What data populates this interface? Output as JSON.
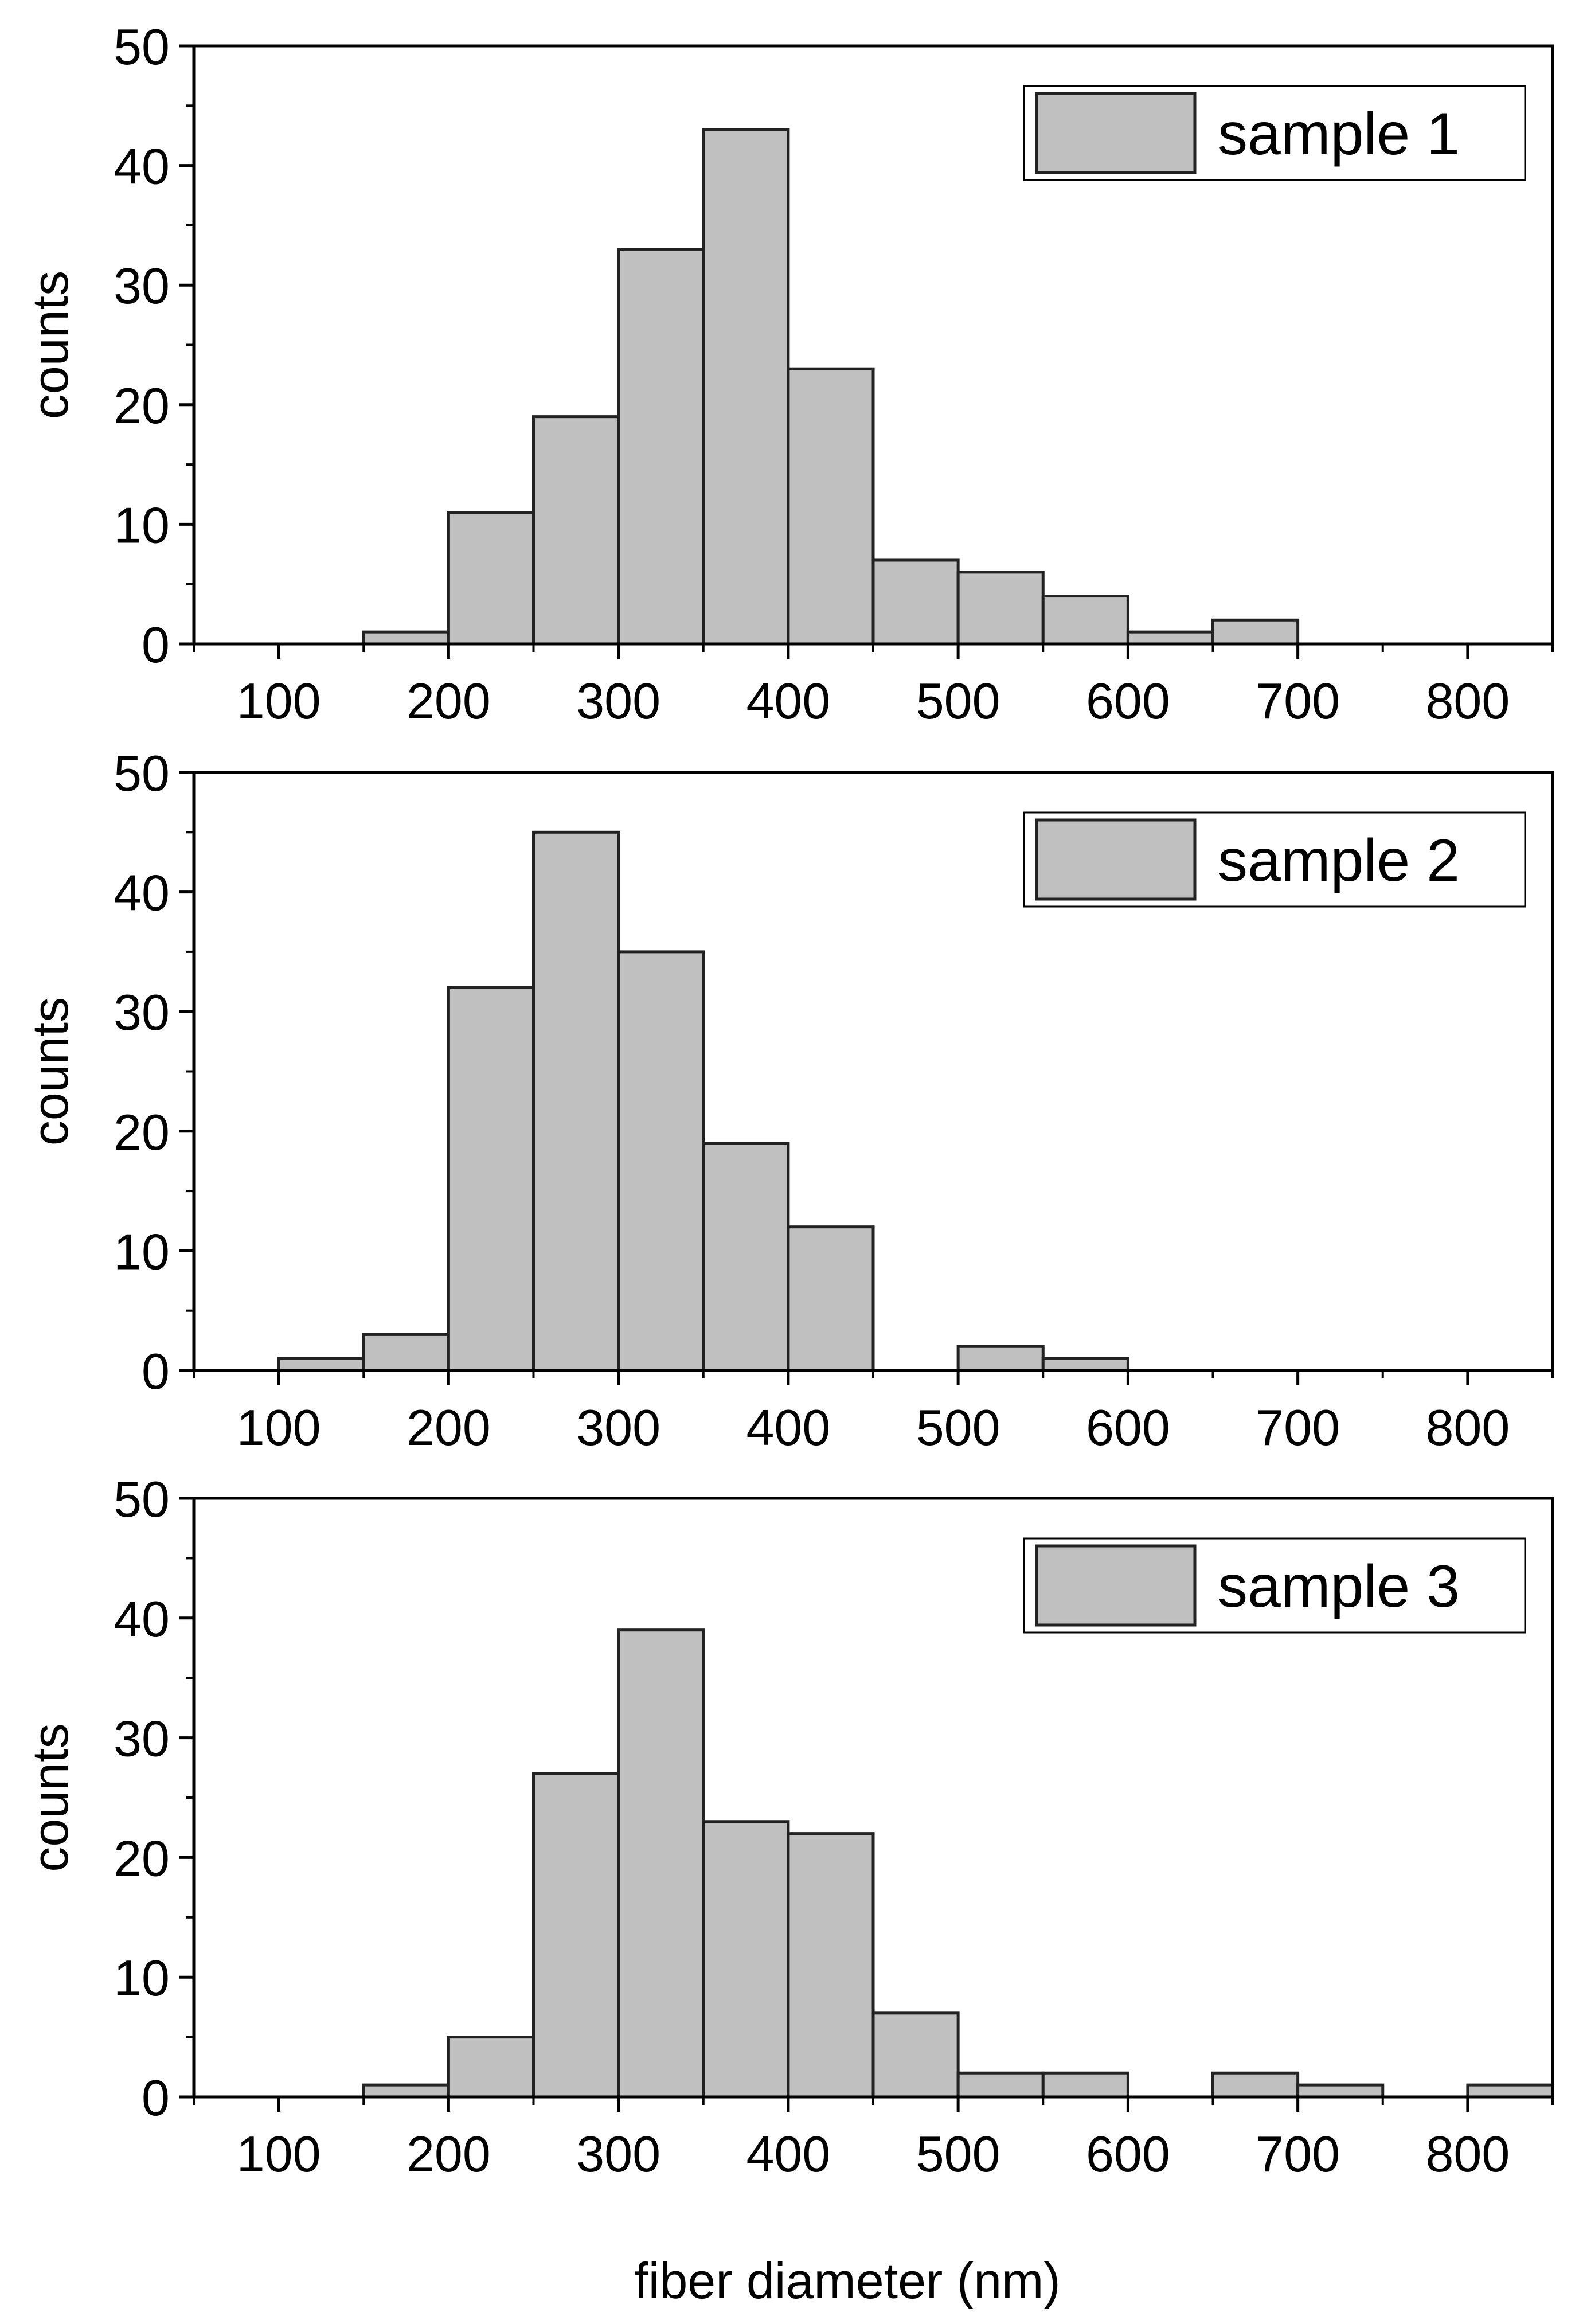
{
  "figure": {
    "xlabel": "fiber diameter (nm)"
  },
  "colors": {
    "bar_fill": "#c0c0c0",
    "bar_stroke": "#222222",
    "axis": "#000000",
    "background": "#ffffff"
  },
  "chart_data": [
    {
      "type": "bar",
      "legend": "sample 1",
      "legend_position": "top-right",
      "ylabel": "counts",
      "xlabel": "",
      "xlim": [
        50,
        850
      ],
      "ylim": [
        0,
        50
      ],
      "xticks": [
        100,
        200,
        300,
        400,
        500,
        600,
        700,
        800
      ],
      "yticks": [
        0,
        10,
        20,
        30,
        40,
        50
      ],
      "grid": false,
      "bins": [
        {
          "from": 150,
          "to": 200,
          "count": 1
        },
        {
          "from": 200,
          "to": 250,
          "count": 11
        },
        {
          "from": 250,
          "to": 300,
          "count": 19
        },
        {
          "from": 300,
          "to": 350,
          "count": 33
        },
        {
          "from": 350,
          "to": 400,
          "count": 43
        },
        {
          "from": 400,
          "to": 450,
          "count": 23
        },
        {
          "from": 450,
          "to": 500,
          "count": 7
        },
        {
          "from": 500,
          "to": 550,
          "count": 6
        },
        {
          "from": 550,
          "to": 600,
          "count": 4
        },
        {
          "from": 600,
          "to": 650,
          "count": 1
        },
        {
          "from": 650,
          "to": 700,
          "count": 2
        }
      ]
    },
    {
      "type": "bar",
      "legend": "sample 2",
      "legend_position": "top-right",
      "ylabel": "counts",
      "xlabel": "",
      "xlim": [
        50,
        850
      ],
      "ylim": [
        0,
        50
      ],
      "xticks": [
        100,
        200,
        300,
        400,
        500,
        600,
        700,
        800
      ],
      "yticks": [
        0,
        10,
        20,
        30,
        40,
        50
      ],
      "grid": false,
      "bins": [
        {
          "from": 100,
          "to": 150,
          "count": 1
        },
        {
          "from": 150,
          "to": 200,
          "count": 3
        },
        {
          "from": 200,
          "to": 250,
          "count": 32
        },
        {
          "from": 250,
          "to": 300,
          "count": 45
        },
        {
          "from": 300,
          "to": 350,
          "count": 35
        },
        {
          "from": 350,
          "to": 400,
          "count": 19
        },
        {
          "from": 400,
          "to": 450,
          "count": 12
        },
        {
          "from": 500,
          "to": 550,
          "count": 2
        },
        {
          "from": 550,
          "to": 600,
          "count": 1
        }
      ]
    },
    {
      "type": "bar",
      "legend": "sample 3",
      "legend_position": "top-right",
      "ylabel": "counts",
      "xlabel": "fiber diameter (nm)",
      "xlim": [
        50,
        850
      ],
      "ylim": [
        0,
        50
      ],
      "xticks": [
        100,
        200,
        300,
        400,
        500,
        600,
        700,
        800
      ],
      "yticks": [
        0,
        10,
        20,
        30,
        40,
        50
      ],
      "grid": false,
      "bins": [
        {
          "from": 150,
          "to": 200,
          "count": 1
        },
        {
          "from": 200,
          "to": 250,
          "count": 5
        },
        {
          "from": 250,
          "to": 300,
          "count": 27
        },
        {
          "from": 300,
          "to": 350,
          "count": 39
        },
        {
          "from": 350,
          "to": 400,
          "count": 23
        },
        {
          "from": 400,
          "to": 450,
          "count": 22
        },
        {
          "from": 450,
          "to": 500,
          "count": 7
        },
        {
          "from": 500,
          "to": 550,
          "count": 2
        },
        {
          "from": 550,
          "to": 600,
          "count": 2
        },
        {
          "from": 650,
          "to": 700,
          "count": 2
        },
        {
          "from": 700,
          "to": 750,
          "count": 1
        },
        {
          "from": 800,
          "to": 850,
          "count": 1
        }
      ]
    }
  ]
}
